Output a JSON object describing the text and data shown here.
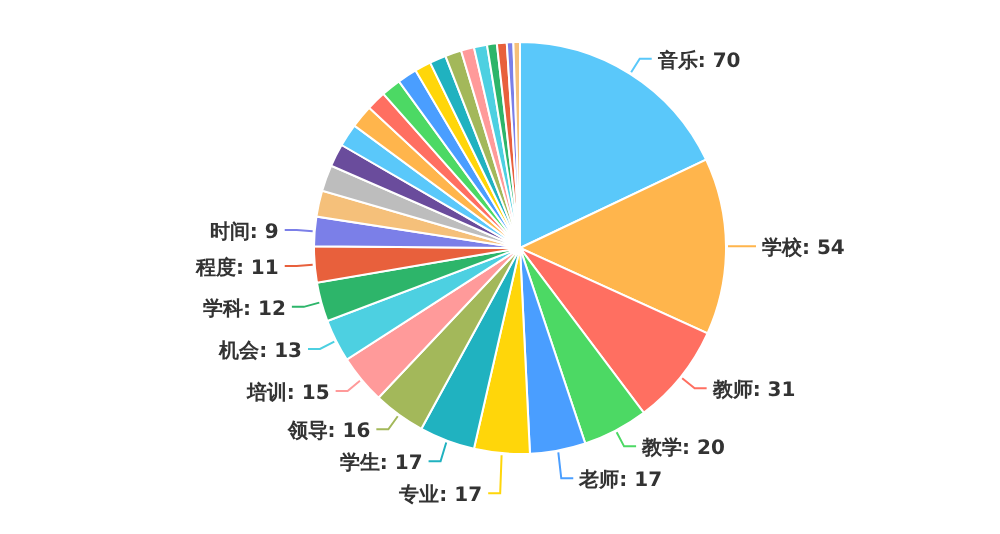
{
  "chart_data": {
    "type": "pie",
    "value_labels": [
      ": 70",
      ": 54",
      ": 31",
      ": 20",
      ": 17",
      ": 17",
      ": 17",
      ": 16",
      ": 15",
      ": 13",
      ": 12",
      ": 11",
      ": 9",
      null,
      null,
      null,
      null,
      null,
      null,
      null,
      null,
      null,
      null,
      null,
      null,
      null,
      null,
      null,
      null,
      null
    ],
    "categories": [
      "音乐",
      "学校",
      "教师",
      "教学",
      "老师",
      "专业",
      "学生",
      "领导",
      "培训",
      "机会",
      "学科",
      "程度",
      "时间",
      null,
      null,
      null,
      null,
      null,
      null,
      null,
      null,
      null,
      null,
      null,
      null,
      null,
      null,
      null,
      null,
      null
    ],
    "values": [
      70,
      54,
      31,
      20,
      17,
      17,
      17,
      16,
      15,
      13,
      12,
      11,
      9,
      8,
      8,
      7,
      7,
      7,
      6,
      6,
      6,
      5,
      5,
      5,
      4,
      4,
      3,
      3,
      2,
      2
    ],
    "colors": [
      "#5ac8fa",
      "#ffb54c",
      "#ff6f61",
      "#4cd964",
      "#4a9eff",
      "#ffd60a",
      "#20b2c0",
      "#a3b85a",
      "#ff9a9a",
      "#4dd0e1",
      "#2db56a",
      "#e8603c",
      "#7b7fe8",
      "#f5c07a",
      "#bdbdbd",
      "#6a4c9c",
      "#5ac8fa",
      "#ffb54c",
      "#ff6f61",
      "#4cd964",
      "#4a9eff",
      "#ffd60a",
      "#20b2c0",
      "#a3b85a",
      "#ff9a9a",
      "#4dd0e1",
      "#2db56a",
      "#e8603c",
      "#7b7fe8",
      "#f5c07a"
    ]
  }
}
